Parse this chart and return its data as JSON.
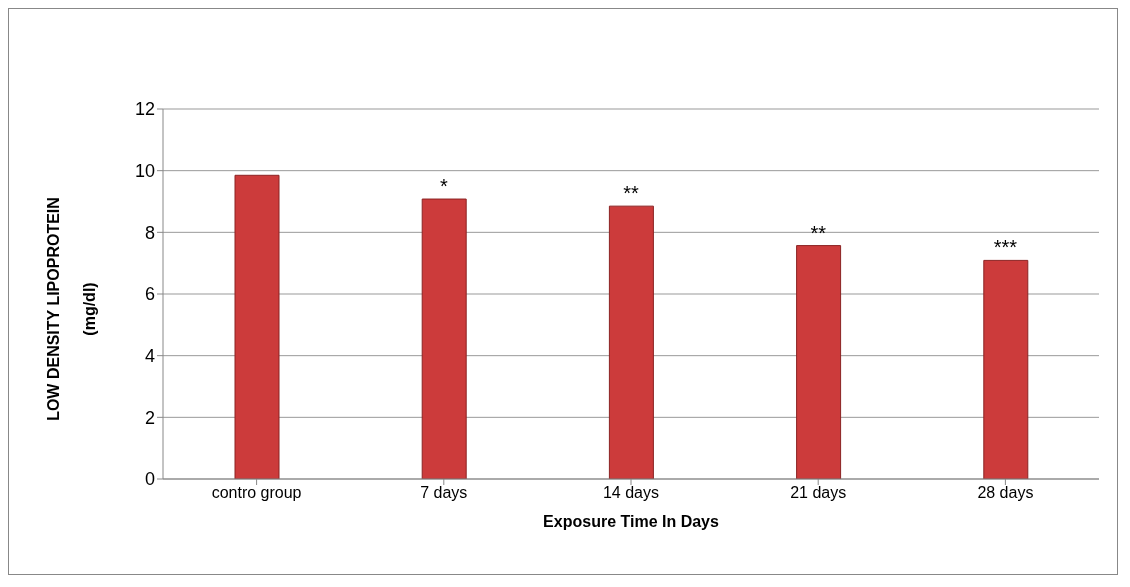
{
  "chart_data": {
    "type": "bar",
    "xlabel": "Exposure Time In Days",
    "ylabel": "LOW DENSITY LIPOPROTEIN\n(mg/dl)",
    "categories": [
      "contro group",
      "7 days",
      "14 days",
      "21 days",
      "28 days"
    ],
    "values": [
      9.85,
      9.08,
      8.85,
      7.57,
      7.09
    ],
    "color": "#cc3b3b",
    "ylim": [
      0,
      12
    ],
    "yticks": [
      0,
      2,
      4,
      6,
      8,
      10,
      12
    ],
    "grid": "y",
    "annotations": [
      {
        "text": "*",
        "x": "7 days",
        "y": 9.08
      },
      {
        "text": "**",
        "x": "14 days",
        "y": 8.85
      },
      {
        "text": "**",
        "x": "21 days",
        "y": 7.57
      },
      {
        "text": "***",
        "x": "28 days",
        "y": 7.09
      }
    ]
  }
}
